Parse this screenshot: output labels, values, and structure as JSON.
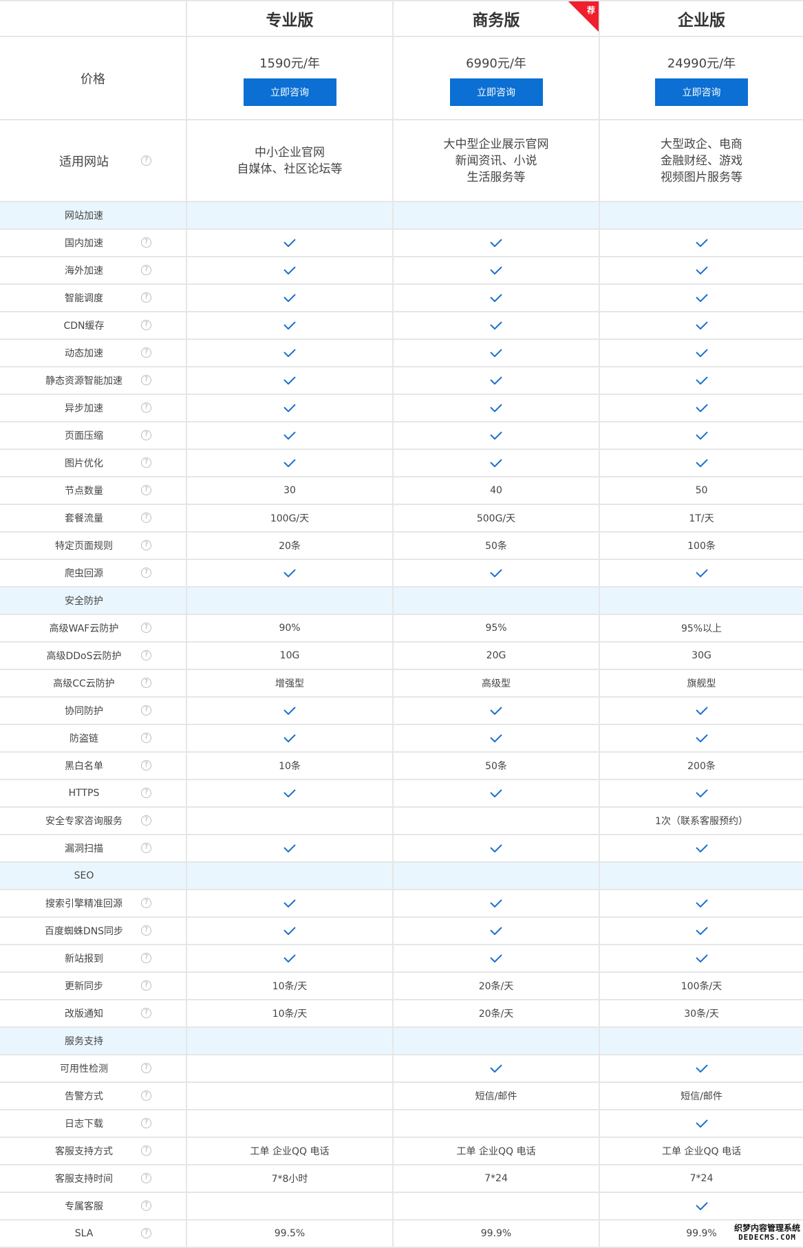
{
  "colors": {
    "accent": "#0b6fd3",
    "section_bg": "#eaf6fe",
    "badge": "#ef1f2e",
    "check": "#1a6fd0"
  },
  "plans": [
    {
      "name": "专业版",
      "price": "1590元/年",
      "button": "立即咨询",
      "sites": [
        "中小企业官网",
        "自媒体、社区论坛等"
      ]
    },
    {
      "name": "商务版",
      "price": "6990元/年",
      "button": "立即咨询",
      "sites": [
        "大中型企业展示官网",
        "新闻资讯、小说",
        "生活服务等"
      ],
      "badge": "荐"
    },
    {
      "name": "企业版",
      "price": "24990元/年",
      "button": "立即咨询",
      "sites": [
        "大型政企、电商",
        "金融财经、游戏",
        "视频图片服务等"
      ]
    }
  ],
  "price_label": "价格",
  "site_label": "适用网站",
  "help_icon": "?",
  "rows": [
    {
      "section": "网站加速"
    },
    {
      "label": "国内加速",
      "values": [
        "check",
        "check",
        "check"
      ]
    },
    {
      "label": "海外加速",
      "values": [
        "check",
        "check",
        "check"
      ]
    },
    {
      "label": "智能调度",
      "values": [
        "check",
        "check",
        "check"
      ]
    },
    {
      "label": "CDN缓存",
      "values": [
        "check",
        "check",
        "check"
      ]
    },
    {
      "label": "动态加速",
      "values": [
        "check",
        "check",
        "check"
      ]
    },
    {
      "label": "静态资源智能加速",
      "values": [
        "check",
        "check",
        "check"
      ]
    },
    {
      "label": "异步加速",
      "values": [
        "check",
        "check",
        "check"
      ]
    },
    {
      "label": "页面压缩",
      "values": [
        "check",
        "check",
        "check"
      ]
    },
    {
      "label": "图片优化",
      "values": [
        "check",
        "check",
        "check"
      ]
    },
    {
      "label": "节点数量",
      "values": [
        "30",
        "40",
        "50"
      ]
    },
    {
      "label": "套餐流量",
      "values": [
        "100G/天",
        "500G/天",
        "1T/天"
      ]
    },
    {
      "label": "特定页面规则",
      "values": [
        "20条",
        "50条",
        "100条"
      ]
    },
    {
      "label": "爬虫回源",
      "values": [
        "check",
        "check",
        "check"
      ]
    },
    {
      "section": "安全防护"
    },
    {
      "label": "高级WAF云防护",
      "values": [
        "90%",
        "95%",
        "95%以上"
      ]
    },
    {
      "label": "高级DDoS云防护",
      "values": [
        "10G",
        "20G",
        "30G"
      ]
    },
    {
      "label": "高级CC云防护",
      "values": [
        "增强型",
        "高级型",
        "旗舰型"
      ]
    },
    {
      "label": "协同防护",
      "values": [
        "check",
        "check",
        "check"
      ]
    },
    {
      "label": "防盗链",
      "values": [
        "check",
        "check",
        "check"
      ]
    },
    {
      "label": "黑白名单",
      "values": [
        "10条",
        "50条",
        "200条"
      ]
    },
    {
      "label": "HTTPS",
      "values": [
        "check",
        "check",
        "check"
      ]
    },
    {
      "label": "安全专家咨询服务",
      "values": [
        "",
        "",
        "1次（联系客服预约）"
      ]
    },
    {
      "label": "漏洞扫描",
      "values": [
        "check",
        "check",
        "check"
      ]
    },
    {
      "section": "SEO"
    },
    {
      "label": "搜索引擎精准回源",
      "values": [
        "check",
        "check",
        "check"
      ]
    },
    {
      "label": "百度蜘蛛DNS同步",
      "values": [
        "check",
        "check",
        "check"
      ]
    },
    {
      "label": "新站报到",
      "values": [
        "check",
        "check",
        "check"
      ]
    },
    {
      "label": "更新同步",
      "values": [
        "10条/天",
        "20条/天",
        "100条/天"
      ]
    },
    {
      "label": "改版通知",
      "values": [
        "10条/天",
        "20条/天",
        "30条/天"
      ]
    },
    {
      "section": "服务支持"
    },
    {
      "label": "可用性检测",
      "values": [
        "",
        "check",
        "check"
      ]
    },
    {
      "label": "告警方式",
      "values": [
        "",
        "短信/邮件",
        "短信/邮件"
      ]
    },
    {
      "label": "日志下载",
      "values": [
        "",
        "",
        "check"
      ]
    },
    {
      "label": "客服支持方式",
      "values": [
        "工单 企业QQ 电话",
        "工单 企业QQ 电话",
        "工单 企业QQ 电话"
      ]
    },
    {
      "label": "客服支持时间",
      "values": [
        "7*8小时",
        "7*24",
        "7*24"
      ]
    },
    {
      "label": "专属客服",
      "values": [
        "",
        "",
        "check"
      ]
    },
    {
      "label": "SLA",
      "values": [
        "99.5%",
        "99.9%",
        "99.9%"
      ]
    }
  ],
  "watermark": {
    "line1": "织梦内容管理系统",
    "line2": "DEDECMS.COM"
  }
}
